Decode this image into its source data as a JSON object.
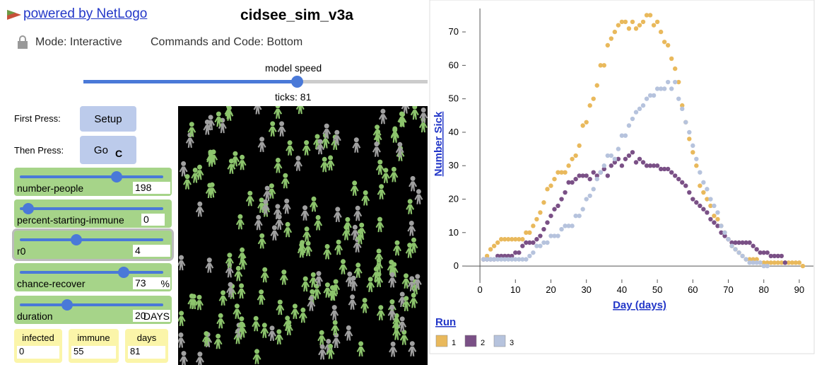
{
  "header": {
    "link": "powered by NetLogo",
    "title": "cidsee_sim_v3a",
    "mode": "Mode: Interactive",
    "commands": "Commands and Code: Bottom"
  },
  "speed": {
    "label": "model speed",
    "ticks_label": "ticks:",
    "ticks": 81
  },
  "buttons": [
    {
      "prompt": "First Press:",
      "label": "Setup"
    },
    {
      "prompt": "Then Press:",
      "label": "Go"
    }
  ],
  "sliders": [
    {
      "name": "number-people",
      "value": 198
    },
    {
      "name": "percent-starting-immune",
      "value": 0
    },
    {
      "name": "r0",
      "value": 4
    },
    {
      "name": "chance-recover",
      "value": 73,
      "units": "%"
    },
    {
      "name": "duration",
      "value": 20,
      "units": "DAYS"
    }
  ],
  "monitors": [
    {
      "name": "infected",
      "value": 0
    },
    {
      "name": "immune",
      "value": 55
    },
    {
      "name": "days",
      "value": 81
    }
  ],
  "chart_data": {
    "type": "scatter",
    "x_label": "Day (days)",
    "y_label": "Number Sick",
    "legend_title": "Run",
    "xlim": [
      -4,
      94
    ],
    "ylim": [
      -4,
      77
    ],
    "xticks": [
      0,
      10,
      20,
      30,
      40,
      50,
      60,
      70,
      80,
      90
    ],
    "yticks": [
      0,
      10,
      20,
      30,
      40,
      50,
      60,
      70
    ],
    "x": [
      1,
      2,
      3,
      4,
      5,
      6,
      7,
      8,
      9,
      10,
      11,
      12,
      13,
      14,
      15,
      16,
      17,
      18,
      19,
      20,
      21,
      22,
      23,
      24,
      25,
      26,
      27,
      28,
      29,
      30,
      31,
      32,
      33,
      34,
      35,
      36,
      37,
      38,
      39,
      40,
      41,
      42,
      43,
      44,
      45,
      46,
      47,
      48,
      49,
      50,
      51,
      52,
      53,
      54,
      55,
      56,
      57,
      58,
      59,
      60,
      61,
      62,
      63,
      64,
      65,
      66,
      67,
      68,
      69,
      70,
      71,
      72,
      73,
      74,
      75,
      76,
      77,
      78,
      79,
      80,
      81,
      82,
      83,
      84,
      85,
      86,
      87,
      88,
      89,
      90,
      91
    ],
    "series": [
      {
        "name": "1",
        "color": "#e9b95c",
        "values": [
          2,
          3,
          5,
          6,
          7,
          8,
          8,
          8,
          8,
          8,
          8,
          8,
          10,
          10,
          12,
          14,
          16,
          19,
          23,
          24,
          26,
          28,
          28,
          28,
          30,
          32,
          33,
          36,
          42,
          43,
          48,
          50,
          54,
          60,
          60,
          66,
          68,
          70,
          72,
          73,
          73,
          71,
          73,
          71,
          72,
          73,
          75,
          75,
          72,
          73,
          70,
          67,
          66,
          62,
          59,
          55,
          48,
          43,
          38,
          34,
          30,
          24,
          22,
          20,
          18,
          15,
          14,
          12,
          10,
          8,
          6,
          5,
          4,
          3,
          2,
          2,
          2,
          2,
          1,
          1,
          1,
          1,
          1,
          1,
          1,
          1,
          1,
          1,
          1,
          1,
          0
        ]
      },
      {
        "name": "2",
        "color": "#7a5086",
        "values": [
          2,
          2,
          2,
          2,
          3,
          3,
          3,
          3,
          3,
          4,
          4,
          6,
          7,
          7,
          7,
          8,
          9,
          11,
          13,
          15,
          17,
          18,
          20,
          22,
          25,
          25,
          26,
          27,
          27,
          27,
          26,
          28,
          27,
          28,
          29,
          27,
          30,
          31,
          32,
          30,
          32,
          33,
          34,
          31,
          32,
          31,
          30,
          30,
          30,
          30,
          29,
          29,
          29,
          28,
          27,
          26,
          25,
          24,
          22,
          20,
          19,
          18,
          17,
          16,
          14,
          13,
          12,
          10,
          9,
          8,
          7,
          7,
          7,
          7,
          7,
          7,
          6,
          5,
          4,
          4,
          4,
          3,
          3,
          3,
          3,
          1,
          null,
          null,
          null,
          null,
          null
        ]
      },
      {
        "name": "3",
        "color": "#b6c3dd",
        "values": [
          2,
          2,
          2,
          2,
          2,
          2,
          2,
          2,
          2,
          2,
          2,
          2,
          2,
          3,
          4,
          6,
          6,
          7,
          7,
          9,
          9,
          9,
          11,
          12,
          12,
          12,
          15,
          15,
          17,
          20,
          21,
          23,
          26,
          28,
          30,
          33,
          33,
          32,
          35,
          39,
          39,
          42,
          44,
          46,
          47,
          48,
          50,
          51,
          51,
          53,
          53,
          53,
          55,
          53,
          55,
          50,
          47,
          43,
          40,
          36,
          32,
          28,
          25,
          23,
          20,
          18,
          16,
          12,
          10,
          8,
          6,
          5,
          4,
          3,
          2,
          1,
          1,
          1,
          1,
          0,
          0,
          null,
          null,
          null,
          null,
          null,
          null,
          null,
          null,
          null,
          null
        ]
      }
    ]
  }
}
